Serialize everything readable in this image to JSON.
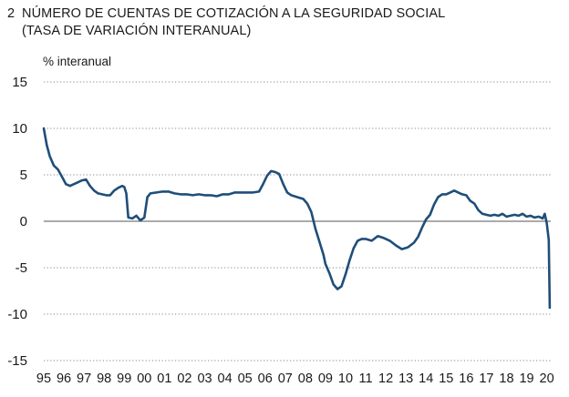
{
  "chart_data": {
    "type": "line",
    "number": "2",
    "title": "NÚMERO DE CUENTAS DE COTIZACIÓN A LA SEGURIDAD SOCIAL",
    "subtitle": "(TASA DE VARIACIÓN INTERANUAL)",
    "ylabel": "% interanual",
    "xlabel": "",
    "ylim": [
      -15,
      15
    ],
    "yticks": [
      15,
      10,
      5,
      0,
      -5,
      -10,
      -15
    ],
    "xlim": [
      1995,
      2020.2
    ],
    "xtick_labels": [
      "95",
      "96",
      "97",
      "98",
      "99",
      "00",
      "01",
      "02",
      "03",
      "04",
      "05",
      "06",
      "07",
      "08",
      "09",
      "10",
      "11",
      "12",
      "13",
      "14",
      "15",
      "16",
      "17",
      "18",
      "19",
      "20"
    ],
    "grid": "horizontal-dotted",
    "line_color": "#1f4e79",
    "series": [
      {
        "x": [
          1995.0,
          1995.15,
          1995.3,
          1995.5,
          1995.7,
          1995.9,
          1996.1,
          1996.3,
          1996.5,
          1996.7,
          1996.9,
          1997.1,
          1997.3,
          1997.5,
          1997.7,
          1997.9,
          1998.1,
          1998.3,
          1998.5,
          1998.7,
          1998.9,
          1999.0,
          1999.1,
          1999.2,
          1999.4,
          1999.6,
          1999.8,
          2000.0,
          2000.15,
          2000.3,
          2000.6,
          2000.9,
          2001.2,
          2001.5,
          2001.8,
          2002.1,
          2002.4,
          2002.7,
          2003.0,
          2003.3,
          2003.6,
          2003.9,
          2004.2,
          2004.5,
          2004.8,
          2005.1,
          2005.4,
          2005.7,
          2005.9,
          2006.1,
          2006.3,
          2006.5,
          2006.7,
          2006.9,
          2007.1,
          2007.3,
          2007.6,
          2007.9,
          2008.1,
          2008.3,
          2008.5,
          2008.7,
          2008.9,
          2009.0,
          2009.2,
          2009.4,
          2009.6,
          2009.8,
          2010.0,
          2010.2,
          2010.4,
          2010.6,
          2010.8,
          2011.0,
          2011.3,
          2011.6,
          2011.9,
          2012.2,
          2012.5,
          2012.8,
          2013.1,
          2013.4,
          2013.6,
          2013.8,
          2014.0,
          2014.2,
          2014.4,
          2014.6,
          2014.8,
          2015.0,
          2015.2,
          2015.4,
          2015.6,
          2015.8,
          2016.0,
          2016.2,
          2016.4,
          2016.6,
          2016.8,
          2017.0,
          2017.2,
          2017.4,
          2017.6,
          2017.8,
          2018.0,
          2018.2,
          2018.4,
          2018.6,
          2018.8,
          2019.0,
          2019.2,
          2019.4,
          2019.6,
          2019.8,
          2019.9,
          2020.0,
          2020.1,
          2020.15
        ],
        "values": [
          10.0,
          8.2,
          7.0,
          6.0,
          5.6,
          4.8,
          4.0,
          3.8,
          4.0,
          4.2,
          4.4,
          4.5,
          3.8,
          3.3,
          3.0,
          2.9,
          2.8,
          2.8,
          3.3,
          3.6,
          3.8,
          3.7,
          3.0,
          0.4,
          0.3,
          0.6,
          0.1,
          0.4,
          2.6,
          3.0,
          3.1,
          3.2,
          3.2,
          3.0,
          2.9,
          2.9,
          2.8,
          2.9,
          2.8,
          2.8,
          2.7,
          2.9,
          2.9,
          3.1,
          3.1,
          3.1,
          3.1,
          3.2,
          4.0,
          4.9,
          5.4,
          5.3,
          5.1,
          4.0,
          3.1,
          2.8,
          2.6,
          2.4,
          1.9,
          1.0,
          -0.8,
          -2.2,
          -3.6,
          -4.6,
          -5.6,
          -6.8,
          -7.3,
          -7.0,
          -5.7,
          -4.2,
          -2.9,
          -2.1,
          -1.9,
          -1.9,
          -2.1,
          -1.6,
          -1.8,
          -2.1,
          -2.6,
          -3.0,
          -2.8,
          -2.3,
          -1.7,
          -0.7,
          0.2,
          0.7,
          1.8,
          2.6,
          2.9,
          2.9,
          3.1,
          3.3,
          3.1,
          2.9,
          2.8,
          2.2,
          1.9,
          1.2,
          0.8,
          0.7,
          0.6,
          0.7,
          0.6,
          0.8,
          0.5,
          0.6,
          0.7,
          0.6,
          0.8,
          0.5,
          0.6,
          0.4,
          0.5,
          0.3,
          0.8,
          -0.2,
          -2.0,
          -9.3
        ]
      }
    ]
  }
}
